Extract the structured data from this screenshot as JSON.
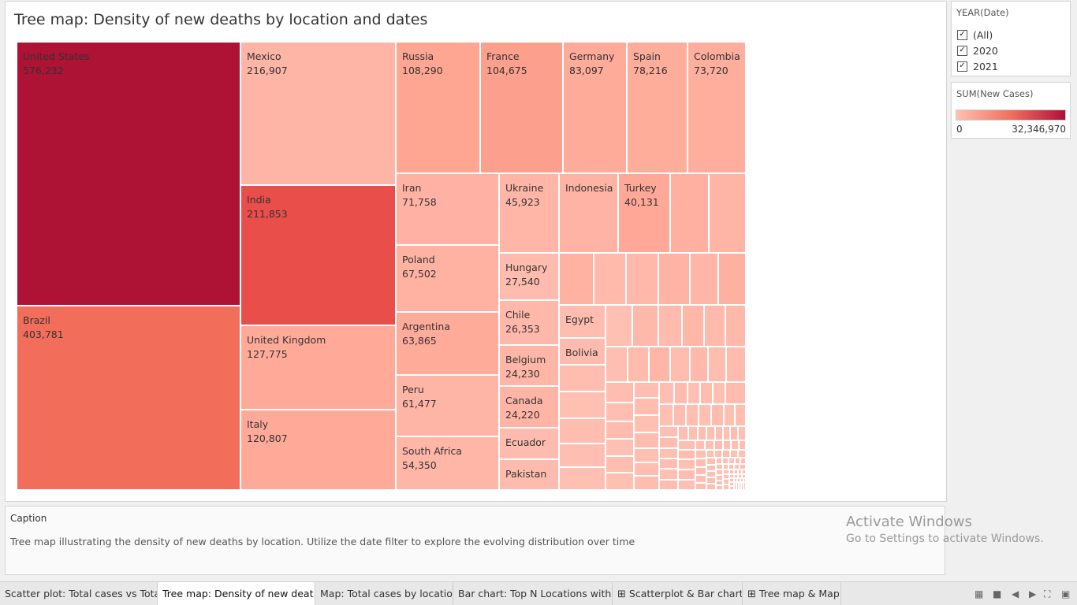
{
  "dashboard": {
    "title": "Tree map: Density of new deaths by location and dates"
  },
  "filter": {
    "header": "YEAR(Date)",
    "options": [
      {
        "label": "(All)",
        "checked": true
      },
      {
        "label": "2020",
        "checked": true
      },
      {
        "label": "2021",
        "checked": true
      }
    ]
  },
  "legend": {
    "header": "SUM(New Cases)",
    "min_label": "0",
    "max_label": "32,346,970",
    "colors": {
      "low": "#ffc0b0",
      "mid": "#f07060",
      "high": "#b0103a"
    }
  },
  "caption": {
    "header": "Caption",
    "text": "Tree map illustrating the density of new deaths by location. Utilize the date filter to explore the evolving distribution over time"
  },
  "watermark": {
    "line1": "Activate Windows",
    "line2": "Go to Settings to activate Windows."
  },
  "tabs": [
    {
      "label": "Scatter plot: Total cases vs Tota...",
      "active": false,
      "icon": ""
    },
    {
      "label": "Tree map: Density of new deat...",
      "active": true,
      "icon": ""
    },
    {
      "label": "Map: Total cases by location",
      "active": false,
      "icon": ""
    },
    {
      "label": "Bar chart: Top N Locations with ...",
      "active": false,
      "icon": ""
    },
    {
      "label": "Scatterplot & Bar chart",
      "active": false,
      "icon": "dashboard-icon"
    },
    {
      "label": "Tree map & Map",
      "active": false,
      "icon": "dashboard-icon"
    }
  ],
  "chart_data": {
    "type": "treemap",
    "title": "Tree map: Density of new deaths by location and dates",
    "size_measure": "New Deaths",
    "color_measure": "SUM(New Cases)",
    "color_range": [
      0,
      32346970
    ],
    "items": [
      {
        "location": "United States",
        "value": 576232,
        "label": "576,232",
        "color": "#ae1235"
      },
      {
        "location": "Brazil",
        "value": 403781,
        "label": "403,781",
        "color": "#f26d5a"
      },
      {
        "location": "Mexico",
        "value": 216907,
        "label": "216,907",
        "color": "#ffb5a6"
      },
      {
        "location": "India",
        "value": 211853,
        "label": "211,853",
        "color": "#ea4e4b"
      },
      {
        "location": "United Kingdom",
        "value": 127775,
        "label": "127,775",
        "color": "#ffaa99"
      },
      {
        "location": "Italy",
        "value": 120807,
        "label": "120,807",
        "color": "#ffa998"
      },
      {
        "location": "Russia",
        "value": 108290,
        "label": "108,290",
        "color": "#fea692"
      },
      {
        "location": "France",
        "value": 104675,
        "label": "104,675",
        "color": "#fc9f8c"
      },
      {
        "location": "Germany",
        "value": 83097,
        "label": "83,097",
        "color": "#ffab9a"
      },
      {
        "location": "Spain",
        "value": 78216,
        "label": "78,216",
        "color": "#ffad9b"
      },
      {
        "location": "Colombia",
        "value": 73720,
        "label": "73,720",
        "color": "#ffae9d"
      },
      {
        "location": "Iran",
        "value": 71758,
        "label": "71,758",
        "color": "#ffb2a3"
      },
      {
        "location": "Poland",
        "value": 67502,
        "label": "67,502",
        "color": "#ffb2a2"
      },
      {
        "location": "Argentina",
        "value": 63865,
        "label": "63,865",
        "color": "#ffab9a"
      },
      {
        "location": "Peru",
        "value": 61477,
        "label": "61,477",
        "color": "#ffb5a6"
      },
      {
        "location": "South Africa",
        "value": 54350,
        "label": "54,350",
        "color": "#ffb6a7"
      },
      {
        "location": "Ukraine",
        "value": 45923,
        "label": "45,923",
        "color": "#ffb6a7"
      },
      {
        "location": "Indonesia",
        "value": null,
        "label": "",
        "color": "#ffb3a4"
      },
      {
        "location": "Turkey",
        "value": 40131,
        "label": "40,131",
        "color": "#ffa897"
      },
      {
        "location": "Hungary",
        "value": 27540,
        "label": "27,540",
        "color": "#ffbcae"
      },
      {
        "location": "Chile",
        "value": 26353,
        "label": "26,353",
        "color": "#ffb8a9"
      },
      {
        "location": "Belgium",
        "value": 24230,
        "label": "24,230",
        "color": "#ffb6a7"
      },
      {
        "location": "Canada",
        "value": 24220,
        "label": "24,220",
        "color": "#ffb4a5"
      },
      {
        "location": "Ecuador",
        "value": null,
        "label": "",
        "color": "#ffbcae"
      },
      {
        "location": "Pakistan",
        "value": null,
        "label": "",
        "color": "#ffbcae"
      },
      {
        "location": "Egypt",
        "value": null,
        "label": "",
        "color": "#ffbdb0"
      },
      {
        "location": "Bolivia",
        "value": null,
        "label": "",
        "color": "#ffbcae"
      }
    ]
  }
}
